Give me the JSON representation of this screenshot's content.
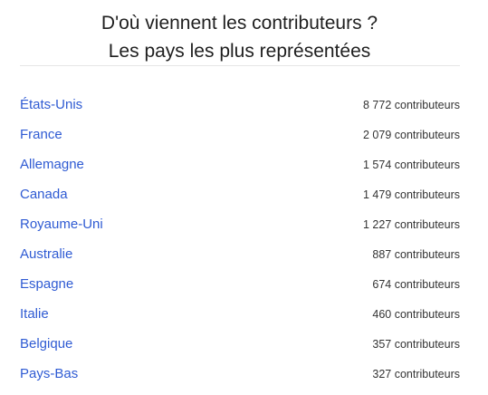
{
  "header": {
    "title_line1": "D'où viennent les contributeurs ?",
    "title_line2": "Les pays les plus représentées"
  },
  "countries": [
    {
      "name": "États-Unis",
      "count": "8 772 contributeurs"
    },
    {
      "name": "France",
      "count": "2 079 contributeurs"
    },
    {
      "name": "Allemagne",
      "count": "1 574 contributeurs"
    },
    {
      "name": "Canada",
      "count": "1 479 contributeurs"
    },
    {
      "name": "Royaume-Uni",
      "count": "1 227 contributeurs"
    },
    {
      "name": "Australie",
      "count": "887 contributeurs"
    },
    {
      "name": "Espagne",
      "count": "674 contributeurs"
    },
    {
      "name": "Italie",
      "count": "460 contributeurs"
    },
    {
      "name": "Belgique",
      "count": "357 contributeurs"
    },
    {
      "name": "Pays-Bas",
      "count": "327 contributeurs"
    }
  ],
  "colors": {
    "link": "#2f5bd3",
    "text": "#333333"
  }
}
